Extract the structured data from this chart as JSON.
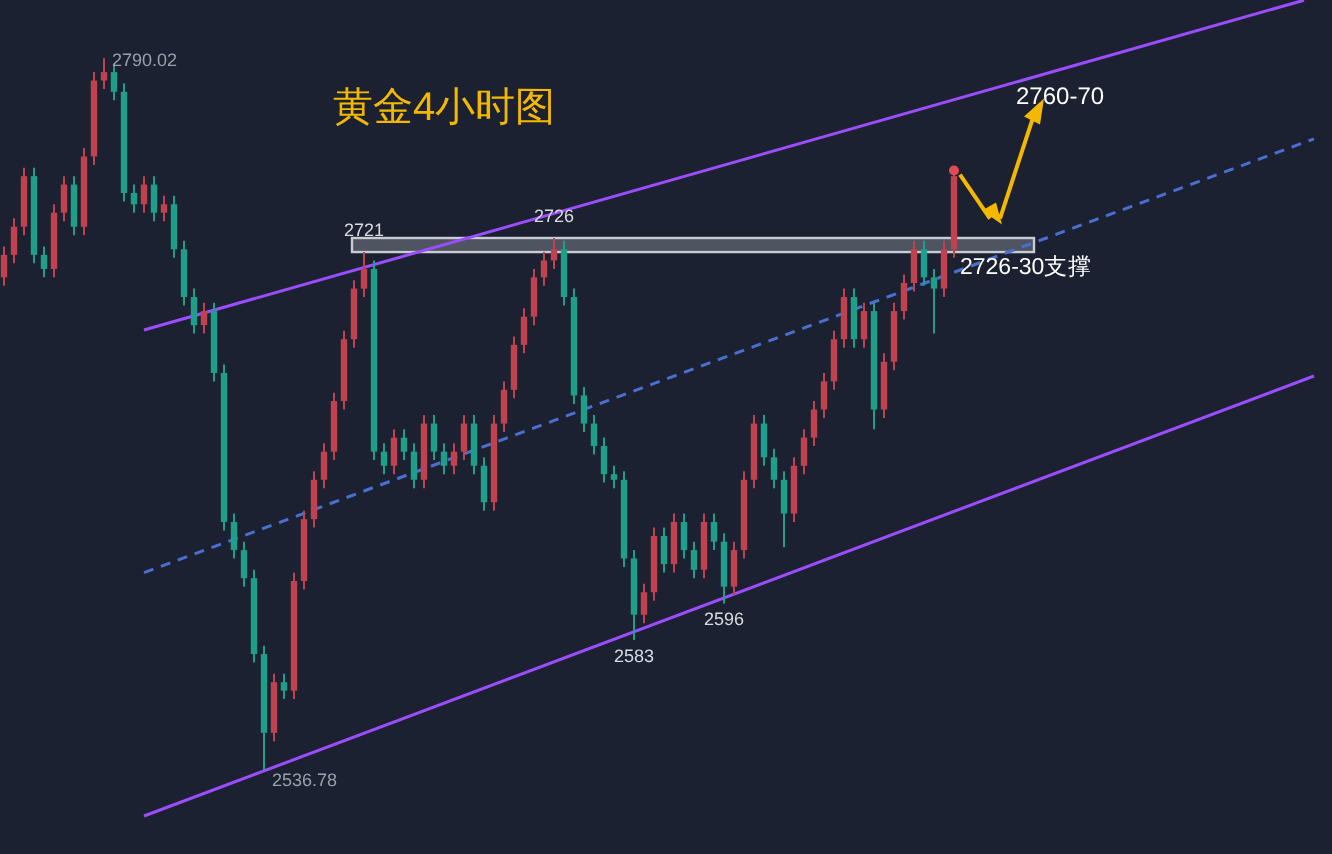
{
  "chart_data": {
    "type": "candlestick",
    "title": "黄金4小时图",
    "categories": [
      null,
      null,
      null,
      null,
      null,
      null,
      null,
      null,
      null,
      null,
      null,
      null,
      null,
      null,
      null,
      null,
      null,
      null,
      null,
      null,
      null,
      null,
      null,
      null,
      null,
      null,
      null,
      null,
      null,
      null,
      null,
      null,
      null,
      null,
      null,
      null,
      null,
      null,
      null,
      null,
      null,
      null,
      null,
      null,
      null,
      null,
      null,
      null,
      null,
      null,
      null,
      null,
      null,
      null,
      null,
      null,
      null,
      null,
      null,
      null,
      null,
      null,
      null,
      null,
      null,
      null,
      null,
      null,
      null,
      null,
      null,
      null,
      null,
      null,
      null,
      null,
      null,
      null,
      null,
      null,
      null,
      null,
      null,
      null,
      null,
      null,
      null,
      null,
      null,
      null,
      null,
      null,
      null,
      null,
      null,
      null,
      null,
      null,
      null,
      null,
      null,
      null,
      null,
      null,
      null,
      null,
      null,
      null,
      null,
      null,
      null,
      null,
      null,
      null,
      null,
      null,
      null,
      null,
      null,
      null,
      null,
      null,
      null,
      null,
      null,
      null,
      null,
      null,
      null,
      null,
      null,
      null,
      null
    ],
    "colors": [
      "#c0424f",
      "#c0424f",
      "#c0424f",
      "#1f9e8a",
      "#1f9e8a",
      "#c0424f",
      "#c0424f",
      "#1f9e8a",
      "#c0424f",
      "#c0424f",
      "#c0424f",
      "#1f9e8a",
      "#1f9e8a",
      "#1f9e8a",
      "#c0424f",
      "#1f9e8a",
      "#c0424f",
      "#1f9e8a",
      "#1f9e8a",
      "#1f9e8a",
      "#c0424f",
      "#1f9e8a",
      "#1f9e8a",
      "#1f9e8a",
      "#1f9e8a",
      "#1f9e8a",
      "#1f9e8a",
      "#c0424f",
      "#1f9e8a",
      "#c0424f",
      "#c0424f",
      "#c0424f",
      "#c0424f",
      "#c0424f",
      "#c0424f",
      "#c0424f",
      "#c0424f",
      "#1f9e8a",
      "#1f9e8a",
      "#c0424f",
      "#1f9e8a",
      "#1f9e8a",
      "#c0424f",
      "#1f9e8a",
      "#1f9e8a",
      "#c0424f",
      "#c0424f",
      "#1f9e8a",
      "#1f9e8a",
      "#c0424f",
      "#c0424f",
      "#c0424f",
      "#c0424f",
      "#c0424f",
      "#c0424f",
      "#c0424f",
      "#1f9e8a",
      "#1f9e8a",
      "#1f9e8a",
      "#1f9e8a",
      "#1f9e8a",
      "#1f9e8a",
      "#1f9e8a",
      "#1f9e8a",
      "#c0424f",
      "#c0424f",
      "#1f9e8a",
      "#c0424f",
      "#1f9e8a",
      "#1f9e8a",
      "#c0424f",
      "#1f9e8a",
      "#1f9e8a",
      "#c0424f",
      "#c0424f",
      "#c0424f",
      "#1f9e8a",
      "#1f9e8a",
      "#1f9e8a",
      "#c0424f",
      "#c0424f",
      "#c0424f",
      "#c0424f",
      "#c0424f",
      "#c0424f",
      "#1f9e8a",
      "#c0424f",
      "#1f9e8a",
      "#c0424f",
      "#c0424f",
      "#c0424f",
      "#c0424f",
      "#1f9e8a",
      "#1f9e8a",
      "#c0424f",
      "#c0424f",
      null,
      null,
      null,
      null,
      null,
      null,
      null,
      null,
      null,
      null,
      null,
      null,
      null,
      null,
      null,
      null,
      null,
      null,
      null,
      null,
      null,
      null,
      null,
      null,
      null,
      null,
      null,
      null,
      null,
      null,
      null,
      null,
      null,
      null,
      null,
      null,
      null
    ],
    "ohlc": [
      [
        2712,
        2723,
        2709,
        2720
      ],
      [
        2720,
        2733,
        2717,
        2730
      ],
      [
        2730,
        2751,
        2727,
        2748
      ],
      [
        2748,
        2751,
        2717,
        2720
      ],
      [
        2720,
        2723,
        2712,
        2715
      ],
      [
        2715,
        2738,
        2712,
        2735
      ],
      [
        2735,
        2748,
        2732,
        2745
      ],
      [
        2745,
        2748,
        2727,
        2730
      ],
      [
        2730,
        2758,
        2727,
        2755
      ],
      [
        2755,
        2785,
        2752,
        2782
      ],
      [
        2782,
        2790.02,
        2779,
        2785
      ],
      [
        2785,
        2788,
        2775,
        2778
      ],
      [
        2778,
        2781,
        2739,
        2742
      ],
      [
        2742,
        2745,
        2735,
        2738
      ],
      [
        2738,
        2748,
        2735,
        2745
      ],
      [
        2745,
        2748,
        2732,
        2735
      ],
      [
        2735,
        2741,
        2732,
        2738
      ],
      [
        2738,
        2741,
        2719,
        2722
      ],
      [
        2722,
        2725,
        2702,
        2705
      ],
      [
        2705,
        2708,
        2692,
        2695
      ],
      [
        2695,
        2703,
        2692,
        2700
      ],
      [
        2700,
        2703,
        2675,
        2678
      ],
      [
        2678,
        2681,
        2622,
        2625
      ],
      [
        2625,
        2628,
        2612,
        2615
      ],
      [
        2615,
        2618,
        2602,
        2605
      ],
      [
        2605,
        2608,
        2575,
        2578
      ],
      [
        2578,
        2581,
        2536.78,
        2550
      ],
      [
        2550,
        2571,
        2547,
        2568
      ],
      [
        2568,
        2571,
        2562,
        2565
      ],
      [
        2565,
        2607,
        2562,
        2604
      ],
      [
        2604,
        2629,
        2601,
        2626
      ],
      [
        2626,
        2643,
        2623,
        2640
      ],
      [
        2640,
        2653,
        2637,
        2650
      ],
      [
        2650,
        2671,
        2647,
        2668
      ],
      [
        2668,
        2693,
        2665,
        2690
      ],
      [
        2690,
        2711,
        2687,
        2708
      ],
      [
        2708,
        2721,
        2705,
        2715
      ],
      [
        2715,
        2718,
        2647,
        2650
      ],
      [
        2650,
        2653,
        2642,
        2645
      ],
      [
        2645,
        2658,
        2642,
        2655
      ],
      [
        2655,
        2658,
        2647,
        2650
      ],
      [
        2650,
        2653,
        2637,
        2640
      ],
      [
        2640,
        2663,
        2637,
        2660
      ],
      [
        2660,
        2663,
        2647,
        2650
      ],
      [
        2650,
        2653,
        2642,
        2645
      ],
      [
        2645,
        2653,
        2642,
        2650
      ],
      [
        2650,
        2663,
        2647,
        2660
      ],
      [
        2660,
        2663,
        2642,
        2645
      ],
      [
        2645,
        2648,
        2629,
        2632
      ],
      [
        2632,
        2663,
        2629,
        2660
      ],
      [
        2660,
        2675,
        2657,
        2672
      ],
      [
        2672,
        2691,
        2669,
        2688
      ],
      [
        2688,
        2701,
        2685,
        2698
      ],
      [
        2698,
        2715,
        2695,
        2712
      ],
      [
        2712,
        2721,
        2709,
        2718
      ],
      [
        2718,
        2726,
        2715,
        2722
      ],
      [
        2722,
        2725,
        2702,
        2705
      ],
      [
        2705,
        2708,
        2667,
        2670
      ],
      [
        2670,
        2673,
        2657,
        2660
      ],
      [
        2660,
        2663,
        2649,
        2652
      ],
      [
        2652,
        2655,
        2639,
        2642
      ],
      [
        2642,
        2645,
        2637,
        2640
      ],
      [
        2640,
        2643,
        2609,
        2612
      ],
      [
        2612,
        2615,
        2583,
        2592
      ],
      [
        2592,
        2603,
        2589,
        2600
      ],
      [
        2600,
        2623,
        2597,
        2620
      ],
      [
        2620,
        2623,
        2607,
        2610
      ],
      [
        2610,
        2628,
        2607,
        2625
      ],
      [
        2625,
        2628,
        2612,
        2615
      ],
      [
        2615,
        2618,
        2605,
        2608
      ],
      [
        2608,
        2628,
        2605,
        2625
      ],
      [
        2625,
        2628,
        2615,
        2618
      ],
      [
        2618,
        2621,
        2596,
        2602
      ],
      [
        2602,
        2618,
        2599,
        2615
      ],
      [
        2615,
        2643,
        2612,
        2640
      ],
      [
        2640,
        2663,
        2637,
        2660
      ],
      [
        2660,
        2663,
        2645,
        2648
      ],
      [
        2648,
        2651,
        2637,
        2640
      ],
      [
        2640,
        2643,
        2616,
        2628
      ],
      [
        2628,
        2648,
        2625,
        2645
      ],
      [
        2645,
        2658,
        2642,
        2655
      ],
      [
        2655,
        2668,
        2652,
        2665
      ],
      [
        2665,
        2678,
        2662,
        2675
      ],
      [
        2675,
        2693,
        2672,
        2690
      ],
      [
        2690,
        2708,
        2687,
        2705
      ],
      [
        2705,
        2708,
        2687,
        2690
      ],
      [
        2690,
        2703,
        2687,
        2700
      ],
      [
        2700,
        2703,
        2658,
        2665
      ],
      [
        2665,
        2685,
        2662,
        2682
      ],
      [
        2682,
        2703,
        2679,
        2700
      ],
      [
        2700,
        2713,
        2697,
        2710
      ],
      [
        2710,
        2725,
        2707,
        2722
      ],
      [
        2722,
        2725,
        2709,
        2712
      ],
      [
        2712,
        2715,
        2692,
        2708
      ],
      [
        2708,
        2725,
        2705,
        2722
      ],
      [
        2722,
        2750,
        2719,
        2748
      ],
      null,
      null,
      null,
      null,
      null,
      null,
      null,
      null,
      null,
      null,
      null,
      null,
      null,
      null,
      null,
      null,
      null,
      null,
      null,
      null,
      null,
      null,
      null,
      null,
      null,
      null,
      null,
      null,
      null,
      null,
      null,
      null,
      null,
      null,
      null,
      null,
      null
    ],
    "series": [
      {
        "type": "line",
        "color": "#9b4dff",
        "line_style": "solid",
        "values": [
          null,
          null,
          null,
          null,
          null,
          null,
          null,
          null,
          null,
          null,
          null,
          null,
          null,
          null,
          2693.3,
          null,
          null,
          null,
          null,
          null,
          null,
          null,
          null,
          null,
          null,
          null,
          null,
          null,
          null,
          null,
          null,
          null,
          null,
          null,
          null,
          null,
          null,
          null,
          null,
          null,
          null,
          null,
          null,
          null,
          null,
          null,
          null,
          null,
          null,
          null,
          null,
          null,
          null,
          null,
          null,
          null,
          null,
          null,
          null,
          null,
          null,
          null,
          null,
          null,
          null,
          null,
          null,
          null,
          null,
          null,
          null,
          null,
          null,
          null,
          null,
          null,
          null,
          null,
          null,
          null,
          null,
          null,
          null,
          null,
          null,
          null,
          null,
          null,
          null,
          null,
          null,
          null,
          null,
          null,
          null,
          null,
          null,
          null,
          null,
          null,
          null,
          null,
          null,
          null,
          null,
          null,
          null,
          null,
          null,
          null,
          null,
          null,
          null,
          null,
          null,
          null,
          null,
          null,
          null,
          null,
          null,
          null,
          null,
          null,
          null,
          null,
          null,
          null,
          null,
          null,
          2810.6,
          null,
          null
        ]
      },
      {
        "type": "line",
        "color": "#9b4dff",
        "line_style": "solid",
        "values": [
          null,
          null,
          null,
          null,
          null,
          null,
          null,
          null,
          null,
          null,
          null,
          null,
          null,
          null,
          2520.4,
          null,
          null,
          null,
          null,
          null,
          null,
          null,
          null,
          null,
          null,
          null,
          null,
          null,
          null,
          null,
          null,
          null,
          null,
          null,
          null,
          null,
          null,
          null,
          null,
          null,
          null,
          null,
          null,
          null,
          null,
          null,
          null,
          null,
          null,
          null,
          null,
          null,
          null,
          null,
          null,
          null,
          null,
          null,
          null,
          null,
          null,
          null,
          null,
          null,
          null,
          null,
          null,
          null,
          null,
          null,
          null,
          null,
          null,
          null,
          null,
          null,
          null,
          null,
          null,
          null,
          null,
          null,
          null,
          null,
          null,
          null,
          null,
          null,
          null,
          null,
          null,
          null,
          null,
          null,
          null,
          null,
          null,
          null,
          null,
          null,
          null,
          null,
          null,
          null,
          null,
          null,
          null,
          null,
          null,
          null,
          null,
          null,
          null,
          null,
          null,
          null,
          null,
          null,
          null,
          null,
          null,
          null,
          null,
          null,
          null,
          null,
          null,
          null,
          null,
          null,
          null,
          2676.9,
          null
        ]
      },
      {
        "type": "line",
        "color": "#4a6fd0",
        "line_style": "dashed",
        "values": [
          null,
          null,
          null,
          null,
          null,
          null,
          null,
          null,
          null,
          null,
          null,
          null,
          null,
          null,
          2607.0,
          null,
          null,
          null,
          null,
          null,
          null,
          null,
          null,
          null,
          null,
          null,
          null,
          null,
          null,
          null,
          null,
          null,
          null,
          null,
          null,
          null,
          null,
          null,
          null,
          null,
          null,
          null,
          null,
          null,
          null,
          null,
          null,
          null,
          null,
          null,
          null,
          null,
          null,
          null,
          null,
          null,
          null,
          null,
          null,
          null,
          null,
          null,
          null,
          null,
          null,
          null,
          null,
          null,
          null,
          null,
          null,
          null,
          null,
          null,
          null,
          null,
          null,
          null,
          null,
          null,
          null,
          null,
          null,
          null,
          null,
          null,
          null,
          null,
          null,
          null,
          null,
          null,
          null,
          null,
          null,
          null,
          null,
          null,
          null,
          null,
          null,
          null,
          null,
          null,
          null,
          null,
          null,
          null,
          null,
          null,
          null,
          null,
          null,
          null,
          null,
          null,
          null,
          null,
          null,
          null,
          null,
          null,
          null,
          null,
          null,
          null,
          null,
          null,
          null,
          null,
          null,
          2761.3,
          null
        ]
      }
    ],
    "bands": [
      {
        "axis": "y",
        "from": 2721,
        "to": 2726,
        "color": "#c8ccd4"
      }
    ],
    "annotations": [
      "2790.02",
      {
        "text": "2721",
        "y": 2721
      },
      {
        "text": "2726",
        "y": 2726
      },
      {
        "text": "2583",
        "y": 2583
      },
      {
        "text": "2596",
        "y": 2596
      },
      "2536.78",
      "2726-30支撑",
      "2760-70"
    ]
  }
}
